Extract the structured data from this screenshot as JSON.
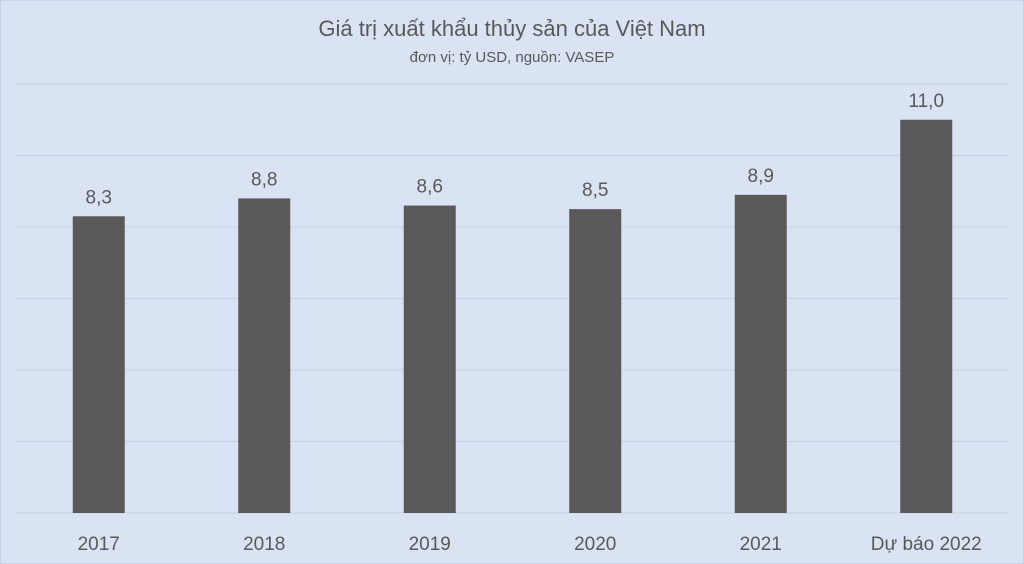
{
  "chart_data": {
    "type": "bar",
    "title": "Giá trị xuất khẩu thủy sản của Việt Nam",
    "subtitle": "đơn vị: tỷ USD, nguồn: VASEP",
    "categories": [
      "2017",
      "2018",
      "2019",
      "2020",
      "2021",
      "Dự báo 2022"
    ],
    "values": [
      8.3,
      8.8,
      8.6,
      8.5,
      8.9,
      11.0
    ],
    "value_labels": [
      "8,3",
      "8,8",
      "8,6",
      "8,5",
      "8,9",
      "11,0"
    ],
    "color": "#595959",
    "ylim": [
      0,
      12
    ],
    "yticks": [
      0,
      2,
      4,
      6,
      8,
      10,
      12
    ],
    "grid": true
  }
}
